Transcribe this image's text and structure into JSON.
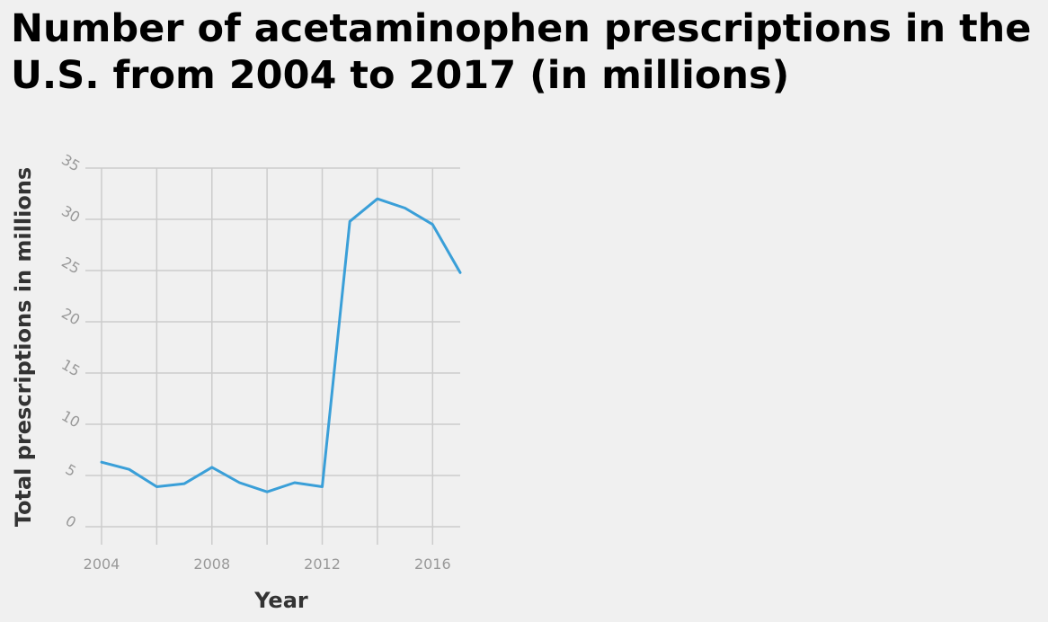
{
  "chart_data": {
    "type": "line",
    "title": "Number of acetaminophen prescriptions in the U.S. from 2004 to 2017 (in millions)",
    "xlabel": "Year",
    "ylabel": "Total prescriptions in millions",
    "xlim": [
      2004,
      2017
    ],
    "ylim": [
      0,
      35
    ],
    "x_ticks": [
      2004,
      2008,
      2012,
      2016
    ],
    "y_ticks": [
      0,
      5,
      10,
      15,
      20,
      25,
      30,
      35
    ],
    "grid": true,
    "legend": "none",
    "line_color": "#3a9fd8",
    "series": [
      {
        "x": [
          2004,
          2005,
          2006,
          2007,
          2008,
          2009,
          2010,
          2011,
          2012,
          2013,
          2014,
          2015,
          2016,
          2017
        ],
        "values": [
          6.3,
          5.6,
          3.9,
          4.2,
          5.8,
          4.3,
          3.4,
          4.3,
          3.9,
          29.8,
          32.0,
          31.1,
          29.5,
          24.8
        ]
      }
    ]
  }
}
